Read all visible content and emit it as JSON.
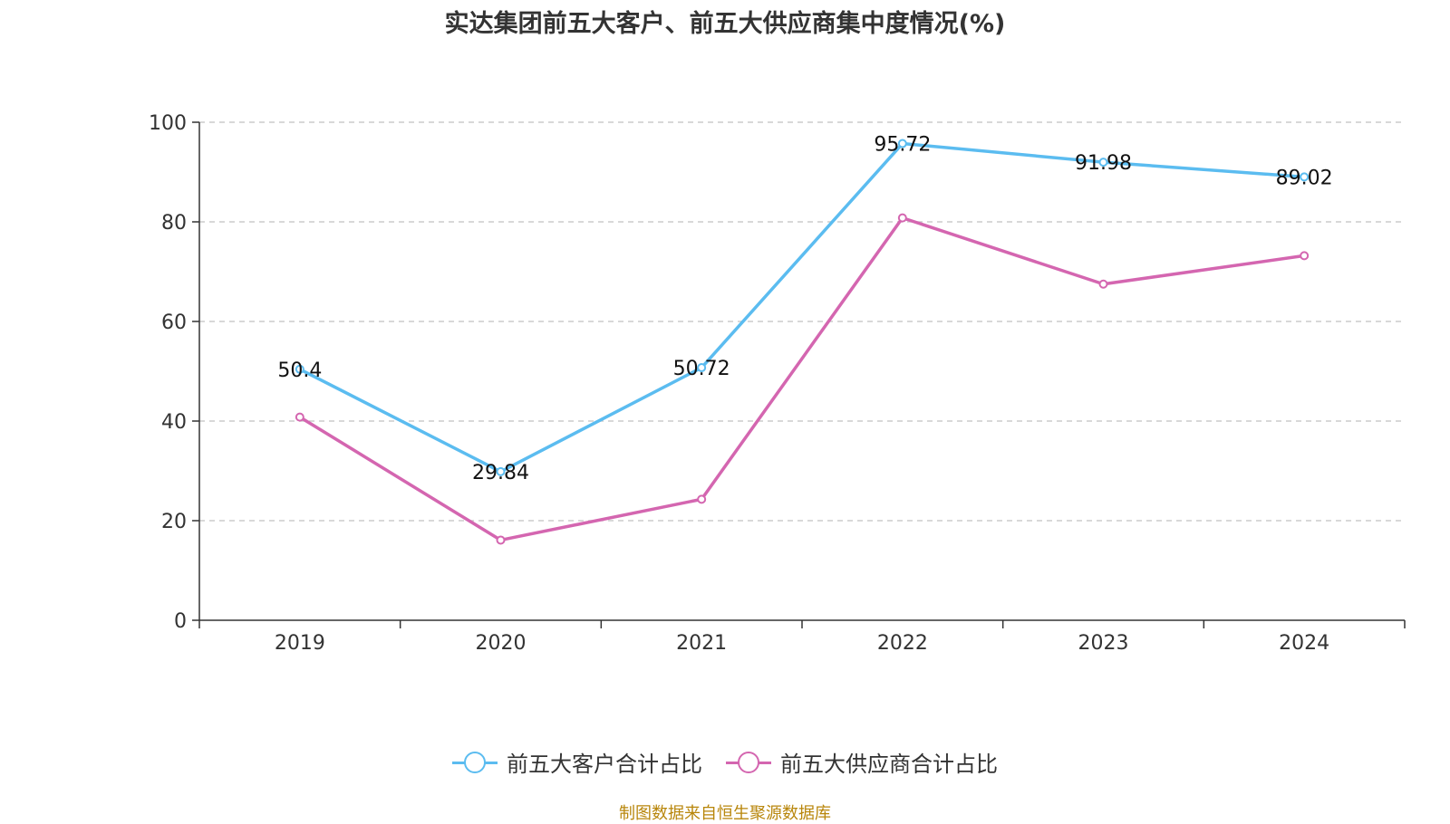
{
  "title": "实达集团前五大客户、前五大供应商集中度情况(%)",
  "footer": "制图数据来自恒生聚源数据库",
  "chart_data": {
    "type": "line",
    "categories": [
      "2019",
      "2020",
      "2021",
      "2022",
      "2023",
      "2024"
    ],
    "ylim": [
      0,
      100
    ],
    "yticks": [
      "0",
      "20",
      "40",
      "60",
      "80",
      "100"
    ],
    "grid": true,
    "legend_position": "bottom",
    "series": [
      {
        "name": "前五大客户合计占比",
        "color": "#5bbcf0",
        "values": [
          50.4,
          29.84,
          50.72,
          95.72,
          91.98,
          89.02
        ],
        "labels": [
          "50.4",
          "29.84",
          "50.72",
          "95.72",
          "91.98",
          "89.02"
        ]
      },
      {
        "name": "前五大供应商合计占比",
        "color": "#d466b0",
        "values": [
          40.8,
          16.1,
          24.3,
          80.8,
          67.5,
          73.2
        ],
        "labels": []
      }
    ]
  }
}
